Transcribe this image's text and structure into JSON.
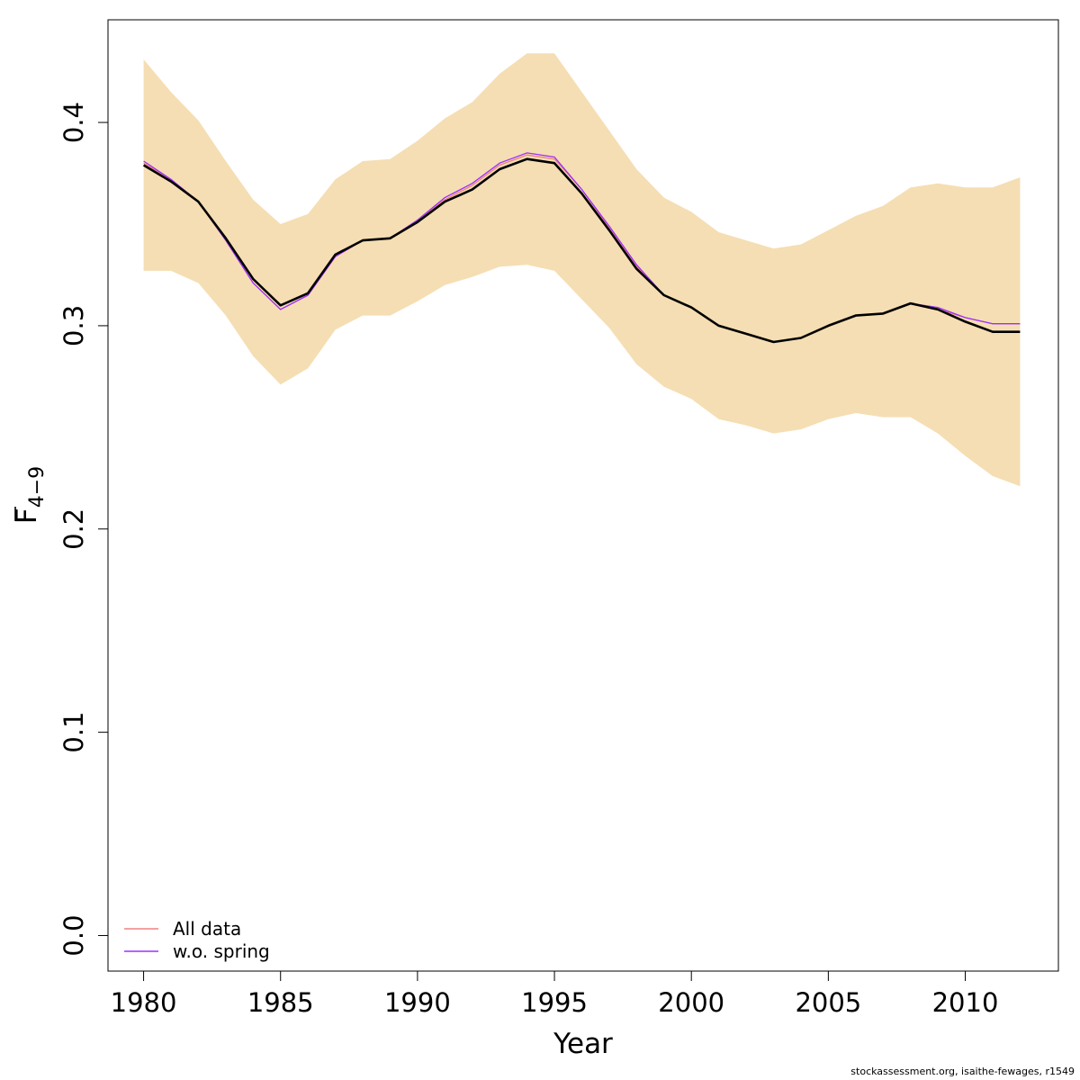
{
  "chart_data": {
    "type": "line",
    "xlabel": "Year",
    "ylabel_main": "F",
    "ylabel_subscript": "4−9",
    "xlim": [
      1978.7,
      2013.4
    ],
    "ylim": [
      -0.0175,
      0.4505
    ],
    "x_ticks": [
      1980,
      1985,
      1990,
      1995,
      2000,
      2005,
      2010
    ],
    "x_tick_labels": [
      "1980",
      "1985",
      "1990",
      "1995",
      "2000",
      "2005",
      "2010"
    ],
    "y_ticks": [
      0.0,
      0.1,
      0.2,
      0.3,
      0.4
    ],
    "y_tick_labels": [
      "0.0",
      "0.1",
      "0.2",
      "0.3",
      "0.4"
    ],
    "grid": false,
    "legend_position": "bottom-left",
    "colors": {
      "band": "#F5DEB3",
      "main": "#000000",
      "all_data": "#F08080",
      "wo_spring": "#9B30FF"
    },
    "x": [
      1980,
      1981,
      1982,
      1983,
      1984,
      1985,
      1986,
      1987,
      1988,
      1989,
      1990,
      1991,
      1992,
      1993,
      1994,
      1995,
      1996,
      1997,
      1998,
      1999,
      2000,
      2001,
      2002,
      2003,
      2004,
      2005,
      2006,
      2007,
      2008,
      2009,
      2010,
      2011,
      2012
    ],
    "band_upper": [
      0.431,
      0.415,
      0.401,
      0.381,
      0.362,
      0.35,
      0.355,
      0.372,
      0.381,
      0.382,
      0.391,
      0.402,
      0.41,
      0.424,
      0.434,
      0.434,
      0.415,
      0.396,
      0.377,
      0.363,
      0.356,
      0.346,
      0.342,
      0.338,
      0.34,
      0.347,
      0.354,
      0.359,
      0.368,
      0.37,
      0.368,
      0.368,
      0.373
    ],
    "band_lower": [
      0.327,
      0.327,
      0.321,
      0.305,
      0.285,
      0.271,
      0.279,
      0.298,
      0.305,
      0.305,
      0.312,
      0.32,
      0.324,
      0.329,
      0.33,
      0.327,
      0.313,
      0.299,
      0.281,
      0.27,
      0.264,
      0.254,
      0.251,
      0.247,
      0.249,
      0.254,
      0.257,
      0.255,
      0.255,
      0.247,
      0.236,
      0.226,
      0.221
    ],
    "series": [
      {
        "name": "All data",
        "values": [
          0.38,
          0.372,
          0.361,
          0.342,
          0.321,
          0.308,
          0.315,
          0.334,
          0.342,
          0.343,
          0.352,
          0.362,
          0.369,
          0.379,
          0.384,
          0.382,
          0.367,
          0.348,
          0.329,
          0.315,
          0.309,
          0.3,
          0.296,
          0.292,
          0.294,
          0.3,
          0.305,
          0.306,
          0.311,
          0.308,
          0.304,
          0.301,
          0.301
        ]
      },
      {
        "name": "w.o. spring",
        "values": [
          0.381,
          0.372,
          0.361,
          0.342,
          0.321,
          0.308,
          0.315,
          0.334,
          0.342,
          0.343,
          0.352,
          0.363,
          0.37,
          0.38,
          0.385,
          0.383,
          0.367,
          0.349,
          0.33,
          0.315,
          0.309,
          0.3,
          0.296,
          0.292,
          0.294,
          0.3,
          0.305,
          0.306,
          0.311,
          0.309,
          0.304,
          0.301,
          0.301
        ]
      }
    ],
    "estimate": [
      0.379,
      0.371,
      0.361,
      0.343,
      0.323,
      0.31,
      0.316,
      0.335,
      0.342,
      0.343,
      0.351,
      0.361,
      0.367,
      0.377,
      0.382,
      0.38,
      0.365,
      0.347,
      0.328,
      0.315,
      0.309,
      0.3,
      0.296,
      0.292,
      0.294,
      0.3,
      0.305,
      0.306,
      0.311,
      0.308,
      0.302,
      0.297,
      0.297
    ]
  },
  "footnote": "stockassessment.org, isaithe-fewages, r1549"
}
